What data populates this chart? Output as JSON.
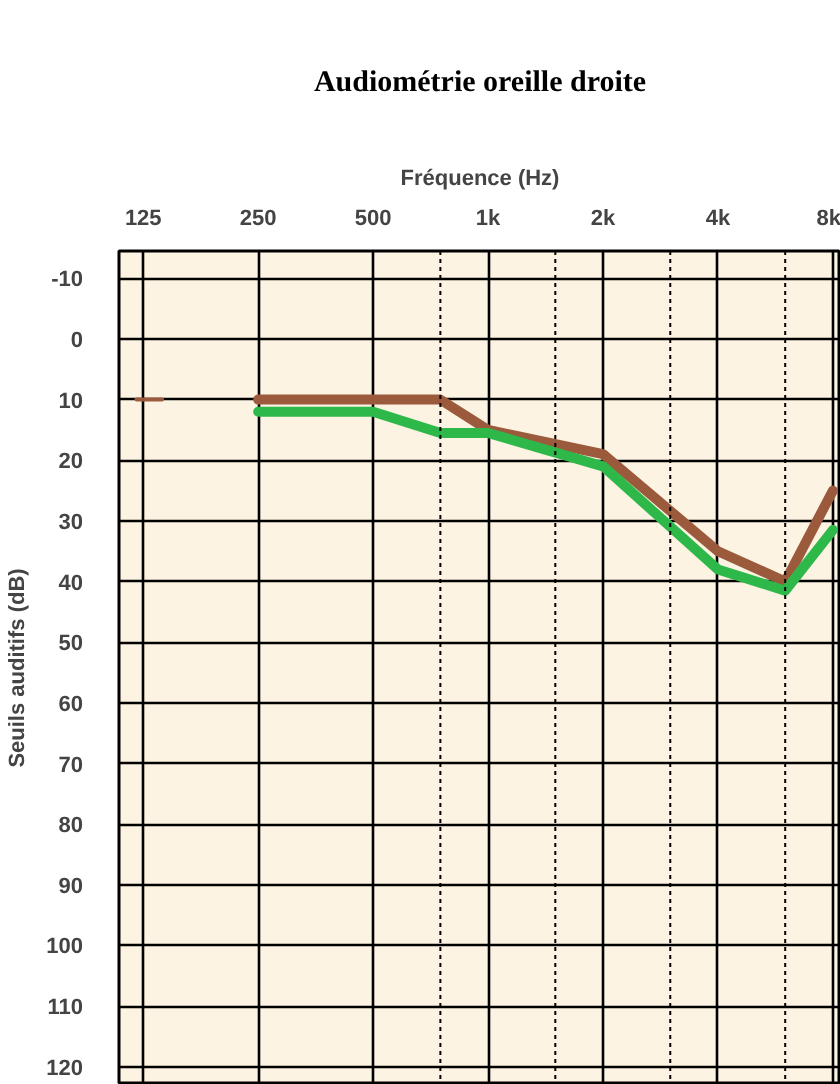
{
  "chart_data": {
    "type": "line",
    "title": "Audiométrie oreille droite",
    "xlabel": "Fréquence (Hz)",
    "ylabel": "Seuils auditifs (dB)",
    "log": "x",
    "xlim": [
      108,
      8400
    ],
    "ylim": [
      123,
      -14.5
    ],
    "xticks": [
      125,
      250,
      500,
      {
        "value": 750,
        "label": null
      },
      {
        "value": 1000,
        "label": "1k"
      },
      {
        "value": 1500,
        "label": null
      },
      {
        "value": 2000,
        "label": "2k"
      },
      {
        "value": 3000,
        "label": null
      },
      {
        "value": 4000,
        "label": "4k"
      },
      {
        "value": 6000,
        "label": null
      },
      {
        "value": 8000,
        "label": "8k"
      }
    ],
    "yticks": [
      -10,
      0,
      10,
      20,
      30,
      40,
      50,
      60,
      70,
      80,
      90,
      100,
      110,
      120
    ],
    "grid": true,
    "series": [
      {
        "color": "#9b5a3c",
        "x": [
          120,
          140
        ],
        "values": [
          10,
          10
        ]
      },
      {
        "color": "#9b5a3c",
        "x": [
          250,
          750,
          1000,
          2000,
          4000,
          6000,
          8000
        ],
        "values": [
          10,
          10,
          15,
          19,
          35,
          40,
          25
        ]
      },
      {
        "color": "#2eb84a",
        "x": [
          250,
          500,
          750,
          1000,
          2000,
          4000,
          6000,
          8000
        ],
        "values": [
          12,
          12,
          15.5,
          15.5,
          21,
          38,
          41.5,
          31.5
        ]
      }
    ]
  }
}
